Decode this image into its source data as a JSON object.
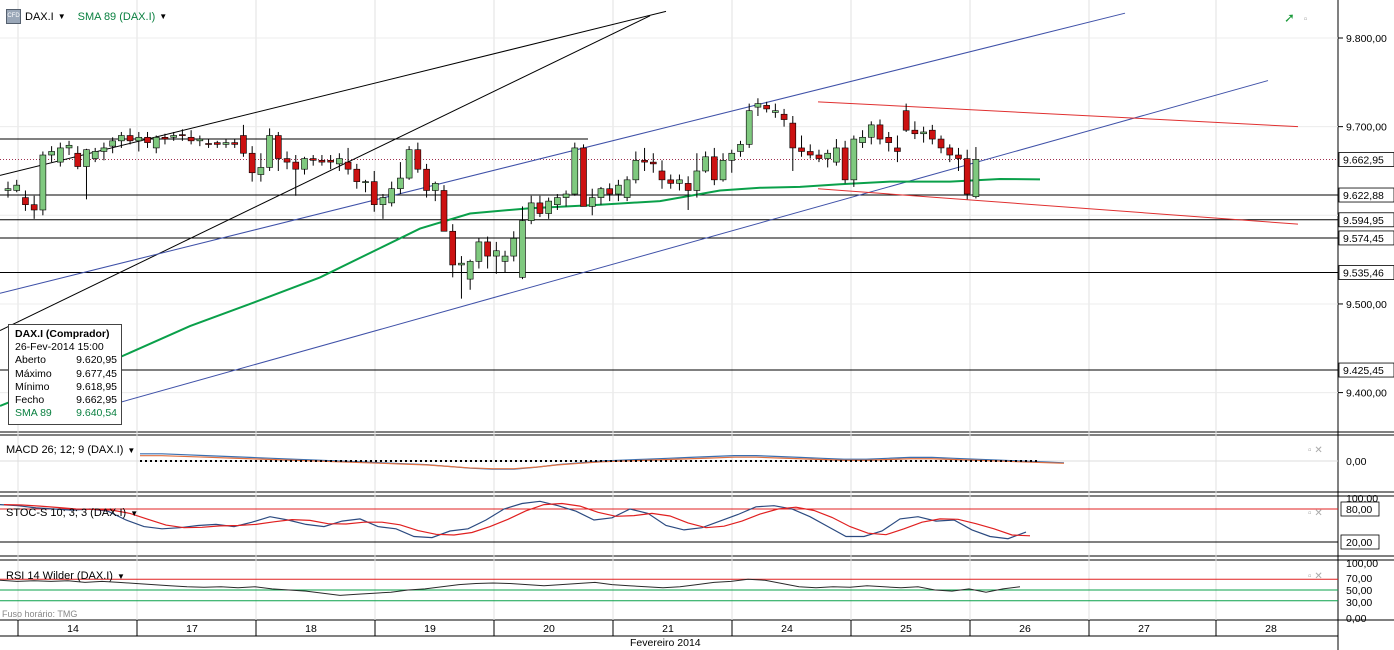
{
  "header": {
    "symbol": "DAX.I",
    "indicator": "SMA 89 (DAX.I)"
  },
  "panels": {
    "macd": "MACD 26; 12; 9 (DAX.I)",
    "stoch": "STOC-S 10; 3; 3 (DAX.I)",
    "rsi": "RSI 14 Wilder (DAX.I)"
  },
  "timezone_label": "Fuso horário: TMG",
  "month_label": "Fevereiro 2014",
  "x_ticks": [
    "14",
    "17",
    "18",
    "19",
    "20",
    "21",
    "24",
    "25",
    "26",
    "27",
    "28"
  ],
  "price_axis": [
    "9.800,00",
    "9.700,00",
    "9.600,00",
    "9.500,00",
    "9.400,00"
  ],
  "price_levels": [
    "9.662,95",
    "9.622,88",
    "9.594,95",
    "9.574,45",
    "9.535,46",
    "9.425,45"
  ],
  "macd_axis": [
    "0,00"
  ],
  "stoch_axis": [
    "100,00",
    "80,00",
    "20,00"
  ],
  "rsi_axis": [
    "100,00",
    "70,00",
    "50,00",
    "30,00",
    "0,00"
  ],
  "info_box": {
    "title": "DAX.I (Comprador)",
    "datetime": "26-Fev-2014 15:00",
    "rows": [
      {
        "label": "Aberto",
        "value": "9.620,95"
      },
      {
        "label": "Máximo",
        "value": "9.677,45"
      },
      {
        "label": "Mínimo",
        "value": "9.618,95"
      },
      {
        "label": "Fecho",
        "value": "9.662,95"
      },
      {
        "label": "SMA 89",
        "value": "9.640,54"
      }
    ]
  },
  "colors": {
    "up": "#7fc97f",
    "down": "#cc1111",
    "sma": "#0aa04a",
    "channel": "#3f51a8",
    "resistance": "#e03030",
    "macd_line": "#3a6fb0",
    "signal_line": "#e07040",
    "stoch_k": "#2b4a80",
    "stoch_d": "#e02020",
    "rsi": "#2a2a2a"
  },
  "chart_data": {
    "type": "candlestick",
    "title": "DAX.I",
    "x": [
      "14",
      "17",
      "18",
      "19",
      "20",
      "21",
      "24",
      "25",
      "26"
    ],
    "ylim": [
      9340,
      9820
    ],
    "candles_ohlc": [
      [
        9628,
        9638,
        9620,
        9630
      ],
      [
        9628,
        9640,
        9626,
        9634
      ],
      [
        9620,
        9628,
        9605,
        9612
      ],
      [
        9612,
        9622,
        9596,
        9606
      ],
      [
        9606,
        9672,
        9600,
        9668
      ],
      [
        9668,
        9678,
        9660,
        9672
      ],
      [
        9660,
        9682,
        9655,
        9676
      ],
      [
        9676,
        9684,
        9668,
        9679
      ],
      [
        9670,
        9678,
        9652,
        9655
      ],
      [
        9655,
        9675,
        9618,
        9674
      ],
      [
        9664,
        9676,
        9660,
        9672
      ],
      [
        9672,
        9682,
        9662,
        9676
      ],
      [
        9678,
        9688,
        9670,
        9684
      ],
      [
        9684,
        9694,
        9676,
        9690
      ],
      [
        9690,
        9698,
        9680,
        9684
      ],
      [
        9684,
        9694,
        9672,
        9688
      ],
      [
        9688,
        9694,
        9676,
        9682
      ],
      [
        9676,
        9690,
        9670,
        9688
      ],
      [
        9688,
        9692,
        9680,
        9686
      ],
      [
        9688,
        9694,
        9684,
        9690
      ],
      [
        9691,
        9697,
        9684,
        9690
      ],
      [
        9688,
        9696,
        9680,
        9684
      ],
      [
        9684,
        9690,
        9678,
        9686
      ],
      [
        9681,
        9686,
        9676,
        9680
      ],
      [
        9682,
        9684,
        9676,
        9680
      ],
      [
        9680,
        9686,
        9676,
        9682
      ],
      [
        9682,
        9686,
        9676,
        9680
      ],
      [
        9690,
        9702,
        9666,
        9670
      ],
      [
        9670,
        9678,
        9638,
        9648
      ],
      [
        9646,
        9670,
        9638,
        9654
      ],
      [
        9654,
        9698,
        9650,
        9690
      ],
      [
        9690,
        9694,
        9650,
        9664
      ],
      [
        9664,
        9672,
        9652,
        9660
      ],
      [
        9660,
        9668,
        9622,
        9652
      ],
      [
        9652,
        9666,
        9646,
        9664
      ],
      [
        9664,
        9668,
        9656,
        9662
      ],
      [
        9662,
        9668,
        9656,
        9660
      ],
      [
        9662,
        9668,
        9652,
        9660
      ],
      [
        9658,
        9670,
        9650,
        9664
      ],
      [
        9660,
        9676,
        9646,
        9652
      ],
      [
        9652,
        9658,
        9630,
        9638
      ],
      [
        9638,
        9640,
        9626,
        9638
      ],
      [
        9638,
        9650,
        9604,
        9612
      ],
      [
        9612,
        9624,
        9596,
        9620
      ],
      [
        9614,
        9638,
        9610,
        9630
      ],
      [
        9630,
        9660,
        9624,
        9642
      ],
      [
        9642,
        9678,
        9640,
        9674
      ],
      [
        9674,
        9682,
        9648,
        9652
      ],
      [
        9652,
        9658,
        9620,
        9628
      ],
      [
        9628,
        9638,
        9616,
        9636
      ],
      [
        9628,
        9634,
        9594,
        9582
      ],
      [
        9582,
        9590,
        9530,
        9544
      ],
      [
        9544,
        9554,
        9506,
        9546
      ],
      [
        9528,
        9550,
        9516,
        9548
      ],
      [
        9548,
        9574,
        9540,
        9570
      ],
      [
        9570,
        9576,
        9540,
        9554
      ],
      [
        9554,
        9570,
        9534,
        9560
      ],
      [
        9548,
        9560,
        9536,
        9554
      ],
      [
        9554,
        9582,
        9548,
        9574
      ],
      [
        9530,
        9610,
        9528,
        9594
      ],
      [
        9594,
        9622,
        9590,
        9614
      ],
      [
        9614,
        9622,
        9598,
        9602
      ],
      [
        9602,
        9620,
        9596,
        9616
      ],
      [
        9612,
        9624,
        9606,
        9620
      ],
      [
        9620,
        9628,
        9610,
        9624
      ],
      [
        9624,
        9682,
        9622,
        9676
      ],
      [
        9676,
        9680,
        9620,
        9610
      ],
      [
        9610,
        9630,
        9600,
        9620
      ],
      [
        9620,
        9632,
        9612,
        9630
      ],
      [
        9630,
        9636,
        9616,
        9624
      ],
      [
        9624,
        9640,
        9616,
        9634
      ],
      [
        9620,
        9644,
        9616,
        9640
      ],
      [
        9640,
        9672,
        9636,
        9662
      ],
      [
        9662,
        9676,
        9650,
        9660
      ],
      [
        9660,
        9670,
        9648,
        9658
      ],
      [
        9650,
        9662,
        9630,
        9640
      ],
      [
        9640,
        9646,
        9630,
        9636
      ],
      [
        9636,
        9646,
        9628,
        9640
      ],
      [
        9636,
        9644,
        9606,
        9628
      ],
      [
        9628,
        9670,
        9620,
        9650
      ],
      [
        9650,
        9672,
        9648,
        9666
      ],
      [
        9666,
        9676,
        9634,
        9640
      ],
      [
        9640,
        9670,
        9638,
        9662
      ],
      [
        9662,
        9674,
        9648,
        9670
      ],
      [
        9672,
        9684,
        9666,
        9680
      ],
      [
        9680,
        9726,
        9676,
        9718
      ],
      [
        9722,
        9732,
        9712,
        9726
      ],
      [
        9724,
        9728,
        9716,
        9720
      ],
      [
        9716,
        9726,
        9710,
        9718
      ],
      [
        9714,
        9720,
        9700,
        9708
      ],
      [
        9704,
        9712,
        9650,
        9676
      ],
      [
        9676,
        9690,
        9666,
        9672
      ],
      [
        9672,
        9680,
        9664,
        9668
      ],
      [
        9668,
        9674,
        9660,
        9664
      ],
      [
        9664,
        9674,
        9654,
        9670
      ],
      [
        9660,
        9686,
        9656,
        9676
      ],
      [
        9676,
        9684,
        9636,
        9640
      ],
      [
        9640,
        9690,
        9632,
        9686
      ],
      [
        9682,
        9696,
        9676,
        9688
      ],
      [
        9688,
        9706,
        9680,
        9702
      ],
      [
        9702,
        9708,
        9680,
        9686
      ],
      [
        9688,
        9694,
        9672,
        9682
      ],
      [
        9676,
        9690,
        9660,
        9672
      ],
      [
        9718,
        9726,
        9694,
        9696
      ],
      [
        9696,
        9706,
        9686,
        9692
      ],
      [
        9692,
        9700,
        9682,
        9694
      ],
      [
        9696,
        9702,
        9680,
        9686
      ],
      [
        9686,
        9690,
        9670,
        9676
      ],
      [
        9676,
        9680,
        9660,
        9668
      ],
      [
        9668,
        9676,
        9650,
        9664
      ],
      [
        9664,
        9674,
        9618,
        9624
      ],
      [
        9621,
        9677,
        9619,
        9663
      ]
    ],
    "sma89": {
      "name": "SMA 89",
      "last": 9640.54
    },
    "last_close": 9662.95
  }
}
